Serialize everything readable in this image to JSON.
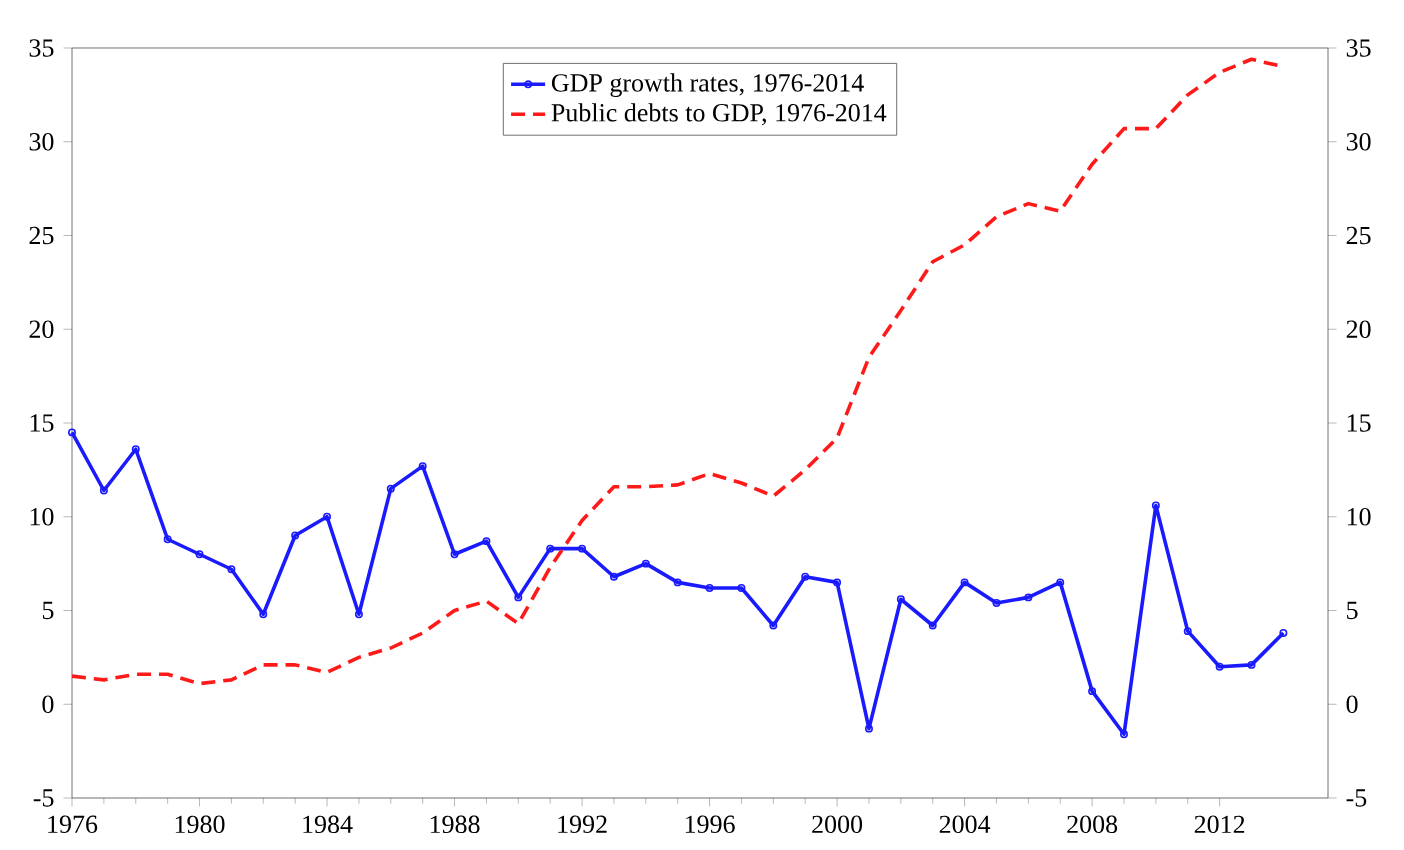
{
  "chart_data": {
    "type": "line",
    "x": [
      1976,
      1977,
      1978,
      1979,
      1980,
      1981,
      1982,
      1983,
      1984,
      1985,
      1986,
      1987,
      1988,
      1989,
      1990,
      1991,
      1992,
      1993,
      1994,
      1995,
      1996,
      1997,
      1998,
      1999,
      2000,
      2001,
      2002,
      2003,
      2004,
      2005,
      2006,
      2007,
      2008,
      2009,
      2010,
      2011,
      2012,
      2013,
      2014
    ],
    "series": [
      {
        "name": "GDP growth rates, 1976-2014",
        "color": "#1a1aff",
        "marker": "circle",
        "line_style": "solid",
        "values": [
          14.5,
          11.4,
          13.6,
          8.8,
          8.0,
          7.2,
          4.8,
          9.0,
          10.0,
          4.8,
          11.5,
          12.7,
          8.0,
          8.7,
          5.7,
          8.3,
          8.3,
          6.8,
          7.5,
          6.5,
          6.2,
          6.2,
          4.2,
          6.8,
          6.5,
          -1.3,
          5.6,
          4.2,
          6.5,
          5.4,
          5.7,
          6.5,
          0.7,
          -1.6,
          10.6,
          3.9,
          2.0,
          2.1,
          3.8
        ]
      },
      {
        "name": "Public debts to GDP, 1976-2014",
        "color": "#ff1a1a",
        "marker": "none",
        "line_style": "dashed",
        "values": [
          1.5,
          1.3,
          1.6,
          1.6,
          1.1,
          1.3,
          2.1,
          2.1,
          1.7,
          2.5,
          3.0,
          3.8,
          5.0,
          5.5,
          4.3,
          7.3,
          9.8,
          11.6,
          11.6,
          11.7,
          12.3,
          11.8,
          11.1,
          12.5,
          14.2,
          18.5,
          21.0,
          23.6,
          24.5,
          26.0,
          26.7,
          26.3,
          28.8,
          30.7,
          30.7,
          32.5,
          33.7,
          34.4,
          34.0
        ]
      }
    ],
    "xlim": [
      1976,
      2015.4
    ],
    "xticks": [
      1976,
      1980,
      1984,
      1988,
      1992,
      1996,
      2000,
      2004,
      2008,
      2012
    ],
    "ylim": [
      -5,
      35
    ],
    "yticks": [
      -5,
      0,
      5,
      10,
      15,
      20,
      25,
      30,
      35
    ],
    "y2lim": [
      -5,
      35
    ],
    "y2ticks": [
      -5,
      0,
      5,
      10,
      15,
      20,
      25,
      30,
      35
    ],
    "grid": false,
    "legend": "top"
  }
}
